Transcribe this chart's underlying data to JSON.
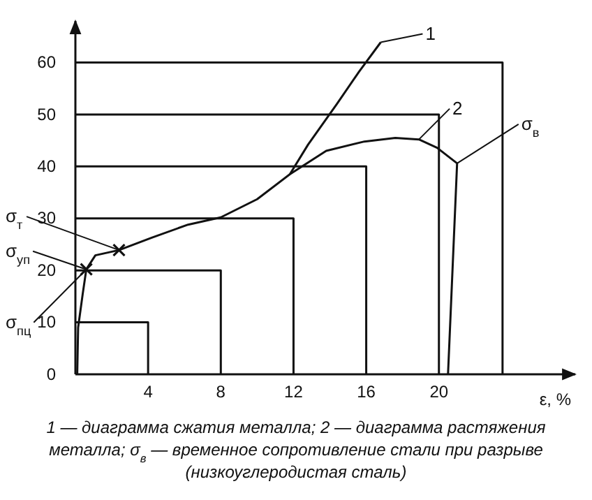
{
  "chart_data": {
    "type": "line",
    "xlabel": "ε, %",
    "xlim": [
      0,
      27.5
    ],
    "ylim": [
      0,
      68
    ],
    "xticks": [
      4,
      8,
      12,
      16,
      20
    ],
    "yticks": [
      0,
      10,
      20,
      30,
      40,
      50,
      60
    ],
    "grid": false,
    "marker": "none",
    "series": [
      {
        "color": "#111111",
        "x": [
          0,
          4,
          4
        ],
        "values": [
          10,
          10,
          0
        ]
      },
      {
        "color": "#111111",
        "x": [
          0,
          8,
          8
        ],
        "values": [
          20,
          20,
          0
        ]
      },
      {
        "color": "#111111",
        "x": [
          0,
          12,
          12
        ],
        "values": [
          30,
          30,
          0
        ]
      },
      {
        "color": "#111111",
        "x": [
          0,
          16,
          16
        ],
        "values": [
          40,
          40,
          0
        ]
      },
      {
        "color": "#111111",
        "x": [
          0,
          20,
          20
        ],
        "values": [
          50,
          50,
          0
        ]
      },
      {
        "color": "#111111",
        "x": [
          0,
          23.5,
          23.5
        ],
        "values": [
          60,
          60,
          0
        ]
      },
      {
        "color": "#111111",
        "x": [
          0.1,
          0.15,
          0.4,
          0.6,
          1.1,
          2.4,
          4.2,
          6.2,
          8.0,
          10.0,
          11.8,
          13.8,
          15.9,
          17.6,
          18.9,
          19.9,
          21.0,
          20.5
        ],
        "values": [
          0,
          9,
          15.4,
          20.2,
          22.9,
          23.9,
          26.3,
          28.8,
          30.2,
          33.7,
          38.5,
          43.0,
          44.8,
          45.5,
          45.2,
          43.6,
          40.6,
          0
        ]
      },
      {
        "color": "#111111",
        "x": [
          11.8,
          12.8,
          14.4,
          15.6,
          16.8
        ],
        "values": [
          38.5,
          44.2,
          52.1,
          58.2,
          63.9
        ]
      },
      {
        "type": "scatter",
        "marker": "cross",
        "color": "#111111",
        "x": [
          0.6,
          2.4
        ],
        "values": [
          20.2,
          23.9
        ]
      }
    ],
    "annotations": [
      {
        "text": "1",
        "x": 16.8,
        "y": 63.9
      },
      {
        "text": "2",
        "x": 18.9,
        "y": 45.2
      },
      {
        "text": "σ$_{в}$",
        "x": 21.0,
        "y": 40.6
      },
      {
        "text": "σ$_{т}$",
        "x": 2.4,
        "y": 23.9
      },
      {
        "text": "σ$_{уп}$",
        "x": 0.6,
        "y": 20.2
      },
      {
        "text": "σ$_{пц}$",
        "x": 0.6,
        "y": 20.2
      },
      "1 — диаграмма сжатия металла; 2 — диаграмма растяжения металла; σ$_{в}$ — временное сопротивление стали при разрыве (низкоуглеродистая сталь)"
    ]
  }
}
